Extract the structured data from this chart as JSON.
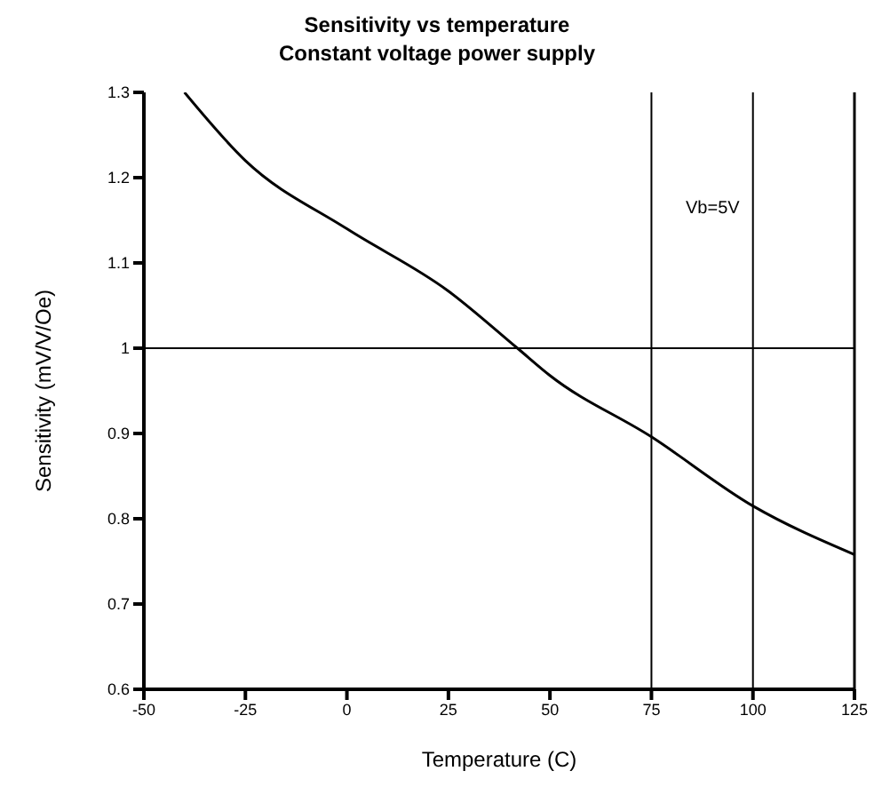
{
  "chart_data": {
    "type": "line",
    "title": "Sensitivity vs temperature",
    "subtitle": "Constant voltage power supply",
    "xlabel": "Temperature (C)",
    "ylabel": "Sensitivity (mV/V/Oe)",
    "x": [
      -40,
      -25,
      0,
      25,
      42,
      50,
      75,
      100,
      125
    ],
    "series": [
      {
        "color": "#000000",
        "values": [
          1.3,
          1.22,
          1.14,
          1.067,
          1.0,
          0.968,
          0.896,
          0.815,
          0.758
        ]
      }
    ],
    "xlim": [
      -50,
      125
    ],
    "xticks": [
      -50,
      -25,
      0,
      25,
      50,
      75,
      100,
      125
    ],
    "ylim": [
      0.6,
      1.3
    ],
    "yticks": [
      0.6,
      0.7,
      0.8,
      0.9,
      1,
      1.1,
      1.2,
      1.3
    ],
    "ref_lines": [
      {
        "axis": "y",
        "value": 1,
        "color": "#000000"
      },
      {
        "axis": "x",
        "value": 75,
        "color": "#000000"
      },
      {
        "axis": "x",
        "value": 100,
        "color": "#000000"
      }
    ],
    "annotations": [
      "Vb=5V"
    ],
    "grid": false,
    "legend": false,
    "marker": "none",
    "line_style": "solid"
  }
}
